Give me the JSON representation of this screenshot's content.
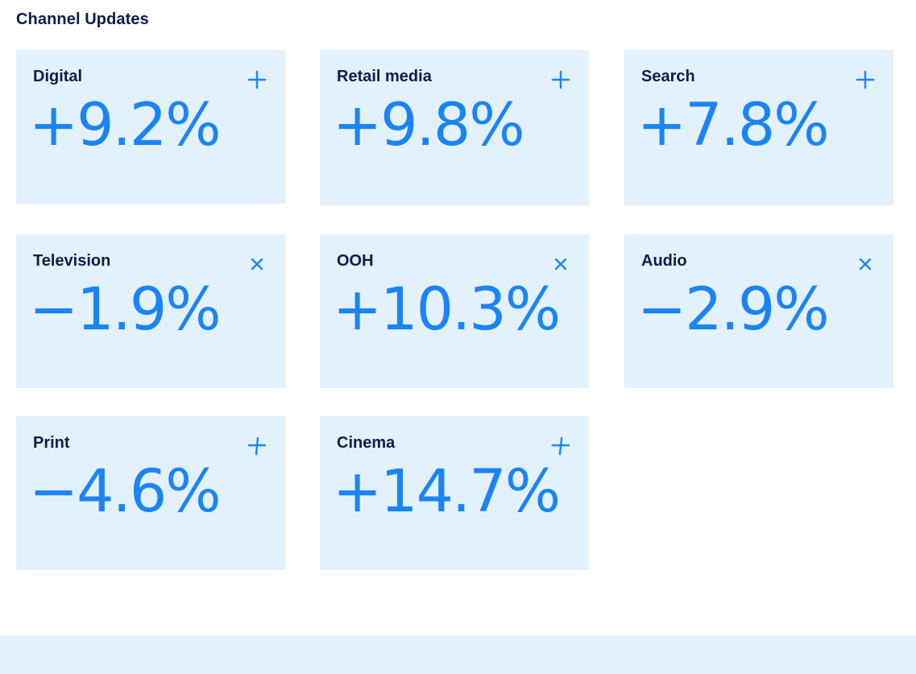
{
  "section": {
    "title": "Channel Updates"
  },
  "colors": {
    "card_background": "#e3f1fd",
    "label": "#0b1f44",
    "value": "#1a84f5"
  },
  "cards": [
    {
      "label": "Digital",
      "value": "+9.2%",
      "icon": "plus-icon"
    },
    {
      "label": "Retail media",
      "value": "+9.8%",
      "icon": "plus-icon"
    },
    {
      "label": "Search",
      "value": "+7.8%",
      "icon": "plus-icon"
    },
    {
      "label": "Television",
      "value": "−1.9%",
      "icon": "close-icon"
    },
    {
      "label": "OOH",
      "value": "+10.3%",
      "icon": "close-icon"
    },
    {
      "label": "Audio",
      "value": "−2.9%",
      "icon": "close-icon"
    },
    {
      "label": "Print",
      "value": "−4.6%",
      "icon": "plus-icon"
    },
    {
      "label": "Cinema",
      "value": "+14.7%",
      "icon": "plus-icon"
    }
  ]
}
